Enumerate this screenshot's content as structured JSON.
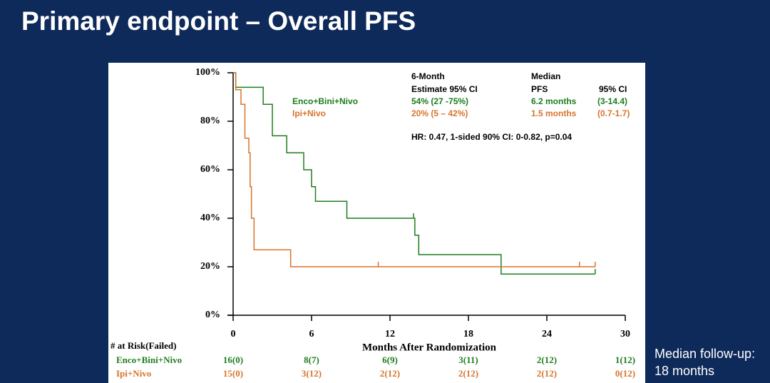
{
  "slide_title": "Primary endpoint – Overall PFS",
  "follow_up": [
    "Median follow-up:",
    "18 months"
  ],
  "chart_data": {
    "type": "step",
    "xlabel": "Months After Randomization",
    "xlim": [
      0,
      30
    ],
    "xticks": [
      0,
      6,
      12,
      18,
      24,
      30
    ],
    "ylim": [
      0,
      100
    ],
    "yticks": [
      {
        "value": 0,
        "label": "0%"
      },
      {
        "value": 20,
        "label": "20%"
      },
      {
        "value": 40,
        "label": "40%"
      },
      {
        "value": 60,
        "label": "60%"
      },
      {
        "value": 80,
        "label": "80%"
      },
      {
        "value": 100,
        "label": "100%"
      }
    ],
    "stats_header": [
      "6-Month",
      "Estimate 95% CI",
      "Median",
      "PFS",
      "95% CI"
    ],
    "hr_text": "HR: 0.47, 1-sided 90% CI: 0-0.82, p=0.04",
    "risk_title": "# at Risk(Failed)",
    "series": [
      {
        "name": "Enco+Bini+Nivo",
        "risk_name": "Enco+Bini+Nivo",
        "color": "#1e7d1e",
        "x": [
          0,
          0.2,
          2.3,
          3.0,
          4.1,
          5.4,
          6.0,
          6.3,
          8.7,
          13.9,
          14.2,
          20.5,
          27.7
        ],
        "values": [
          100,
          94,
          87,
          74,
          67,
          60,
          53,
          47,
          40,
          33,
          25,
          17,
          17
        ],
        "censored": [
          13.8,
          27.7
        ],
        "estimate_6mo": "54% (27 -75%)",
        "median": "6.2 months",
        "median_ci": "(3-14.4)",
        "at_risk": [
          "16(0)",
          "8(7)",
          "6(9)",
          "3(11)",
          "2(12)",
          "1(12)"
        ]
      },
      {
        "name": "Ipi+Nivo",
        "risk_name": "Ipi+Nivo",
        "color": "#d8742c",
        "x": [
          0,
          0.2,
          0.6,
          0.9,
          1.2,
          1.3,
          1.4,
          1.6,
          4.4,
          27.7
        ],
        "values": [
          100,
          93,
          87,
          73,
          67,
          53,
          40,
          27,
          20,
          20
        ],
        "censored": [
          11.1,
          26.5,
          27.7
        ],
        "estimate_6mo": "20% (5 – 42%)",
        "median": "1.5 months",
        "median_ci": "(0.7-1.7)",
        "at_risk": [
          "15(0)",
          "3(12)",
          "2(12)",
          "2(12)",
          "2(12)",
          "0(12)"
        ]
      }
    ]
  }
}
